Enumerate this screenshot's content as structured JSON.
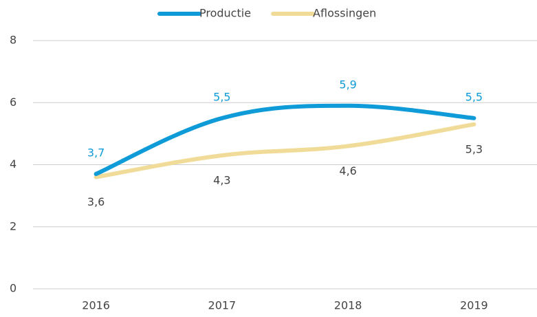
{
  "chart_data": {
    "type": "line",
    "categories": [
      "2016",
      "2017",
      "2018",
      "2019"
    ],
    "series": [
      {
        "name": "Productie",
        "color": "#0e9bd8",
        "values": [
          3.7,
          5.5,
          5.9,
          5.5
        ],
        "value_labels": [
          "3,7",
          "5,5",
          "5,9",
          "5,5"
        ]
      },
      {
        "name": "Aflossingen",
        "color": "#f0dc98",
        "values": [
          3.6,
          4.3,
          4.6,
          5.3
        ],
        "value_labels": [
          "3,6",
          "4,3",
          "4,6",
          "5,3"
        ]
      }
    ],
    "ylim": [
      0,
      8
    ],
    "yticks": [
      0,
      2,
      4,
      6,
      8
    ],
    "grid": true,
    "legend": "top"
  }
}
